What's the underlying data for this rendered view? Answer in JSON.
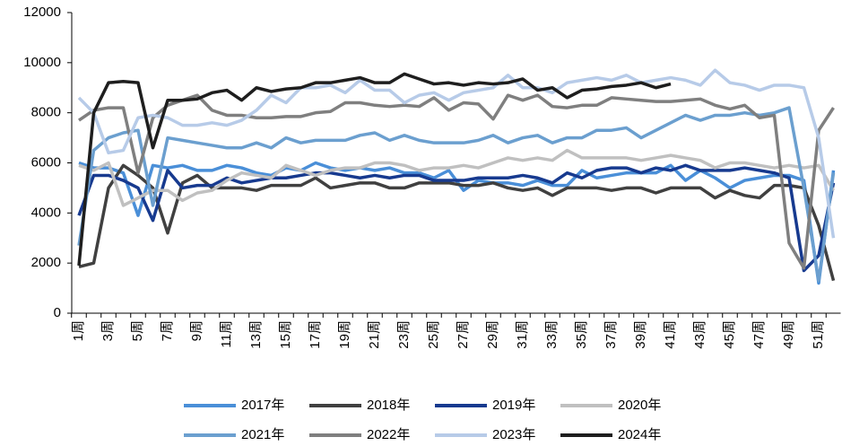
{
  "chart_data": {
    "type": "line",
    "categories": [
      "1周",
      null,
      "3周",
      null,
      "5周",
      null,
      "7周",
      null,
      "9周",
      null,
      "11周",
      null,
      "13周",
      null,
      "15周",
      null,
      "17周",
      null,
      "19周",
      null,
      "21周",
      null,
      "23周",
      null,
      "25周",
      null,
      "27周",
      null,
      "29周",
      null,
      "31周",
      null,
      "33周",
      null,
      "35周",
      null,
      "37周",
      null,
      "39周",
      null,
      "41周",
      null,
      "43周",
      null,
      "45周",
      null,
      "47周",
      null,
      "49周",
      null,
      "51周",
      null
    ],
    "ylim": [
      0,
      12000
    ],
    "yticks": [
      0,
      2000,
      4000,
      6000,
      8000,
      10000,
      12000
    ],
    "grid": false,
    "legend": "bottom",
    "series": [
      {
        "name": "2017年",
        "color": "#4a8fd8",
        "values": [
          6000,
          5800,
          5800,
          5600,
          3900,
          5900,
          5800,
          5900,
          5700,
          5700,
          5900,
          5800,
          5600,
          5500,
          5800,
          5700,
          6000,
          5800,
          5700,
          5800,
          5700,
          5800,
          5600,
          5600,
          5400,
          5700,
          4900,
          5300,
          5200,
          5200,
          5100,
          5300,
          5100,
          5100,
          5700,
          5400,
          5500,
          5600,
          5600,
          5600,
          5900,
          5300,
          5700,
          5400,
          5000,
          5300,
          5400,
          5500,
          5500,
          5300,
          1200,
          5700
        ]
      },
      {
        "name": "2018年",
        "color": "#404040",
        "values": [
          1850,
          2000,
          5000,
          5900,
          5500,
          5000,
          3200,
          5200,
          5500,
          5000,
          5000,
          5000,
          4900,
          5100,
          5100,
          5100,
          5400,
          5000,
          5100,
          5200,
          5200,
          5000,
          5000,
          5200,
          5200,
          5200,
          5100,
          5100,
          5200,
          5000,
          4900,
          5000,
          4700,
          5000,
          5000,
          5000,
          4900,
          5000,
          5000,
          4800,
          5000,
          5000,
          5000,
          4600,
          4900,
          4700,
          4600,
          5100,
          5100,
          5000,
          3500,
          1300
        ]
      },
      {
        "name": "2019年",
        "color": "#173a8f",
        "values": [
          3900,
          5500,
          5500,
          5300,
          5000,
          3700,
          5700,
          5000,
          5100,
          5100,
          5400,
          5200,
          5300,
          5400,
          5400,
          5500,
          5600,
          5600,
          5500,
          5400,
          5500,
          5400,
          5500,
          5500,
          5300,
          5300,
          5300,
          5400,
          5400,
          5400,
          5500,
          5400,
          5200,
          5600,
          5400,
          5700,
          5800,
          5800,
          5600,
          5800,
          5700,
          5900,
          5700,
          5700,
          5700,
          5800,
          5700,
          5600,
          5400,
          1700,
          2300,
          5200
        ]
      },
      {
        "name": "2020年",
        "color": "#c0c0c0",
        "values": [
          5900,
          5700,
          6000,
          4300,
          4600,
          4900,
          4900,
          4500,
          4800,
          4900,
          5300,
          5600,
          5500,
          5400,
          5900,
          5700,
          5500,
          5700,
          5800,
          5800,
          6000,
          6000,
          5900,
          5700,
          5800,
          5800,
          5900,
          5800,
          6000,
          6200,
          6100,
          6200,
          6100,
          6500,
          6200,
          6200,
          6200,
          6200,
          6100,
          6200,
          6300,
          6200,
          6100,
          5800,
          6000,
          6000,
          5900,
          5800,
          5900,
          5800,
          5900,
          4900
        ]
      },
      {
        "name": "2021年",
        "color": "#6b9fcf",
        "values": [
          2700,
          6500,
          7000,
          7200,
          7300,
          4300,
          7000,
          6900,
          6800,
          6700,
          6600,
          6600,
          6800,
          6600,
          7000,
          6800,
          6900,
          6900,
          6900,
          7100,
          7200,
          6900,
          7100,
          6900,
          6800,
          6800,
          6800,
          6900,
          7100,
          6800,
          7000,
          7100,
          6800,
          7000,
          7000,
          7300,
          7300,
          7400,
          7000,
          7300,
          7600,
          7900,
          7700,
          7900,
          7900,
          8000,
          7900,
          8000,
          8200,
          5000,
          1300,
          5600
        ]
      },
      {
        "name": "2022年",
        "color": "#7f7f7f",
        "values": [
          7700,
          8100,
          8200,
          8200,
          5600,
          7800,
          8300,
          8500,
          8700,
          8100,
          7900,
          7900,
          7800,
          7800,
          7850,
          7850,
          8000,
          8050,
          8400,
          8400,
          8300,
          8250,
          8300,
          8250,
          8600,
          8100,
          8400,
          8350,
          7750,
          8700,
          8500,
          8700,
          8250,
          8200,
          8300,
          8300,
          8600,
          8550,
          8500,
          8450,
          8450,
          8500,
          8550,
          8300,
          8150,
          8300,
          7800,
          7900,
          2800,
          1800,
          7300,
          8200
        ]
      },
      {
        "name": "2023年",
        "color": "#b7cbe8",
        "values": [
          8600,
          8000,
          6400,
          6500,
          7800,
          7900,
          7800,
          7500,
          7500,
          7600,
          7500,
          7700,
          8100,
          8700,
          8400,
          9000,
          9000,
          9100,
          8800,
          9300,
          8900,
          8900,
          8400,
          8700,
          8800,
          8500,
          8800,
          8900,
          9000,
          9500,
          9000,
          9000,
          8800,
          9200,
          9300,
          9400,
          9300,
          9500,
          9200,
          9300,
          9400,
          9300,
          9100,
          9700,
          9200,
          9100,
          8900,
          9100,
          9100,
          9000,
          7000,
          3000
        ]
      },
      {
        "name": "2024年",
        "color": "#1e1e1e",
        "values": [
          1900,
          8000,
          9200,
          9250,
          9200,
          6600,
          8500,
          8500,
          8550,
          8800,
          8900,
          8500,
          9000,
          8850,
          8950,
          9000,
          9200,
          9200,
          9300,
          9400,
          9200,
          9200,
          9550,
          9350,
          9150,
          9200,
          9100,
          9200,
          9150,
          9200,
          9350,
          8900,
          9000,
          8600,
          8900,
          8950,
          9050,
          9100,
          9200,
          9000,
          9150,
          null,
          null,
          null,
          null,
          null,
          null,
          null,
          null,
          null,
          null,
          null
        ]
      }
    ]
  }
}
